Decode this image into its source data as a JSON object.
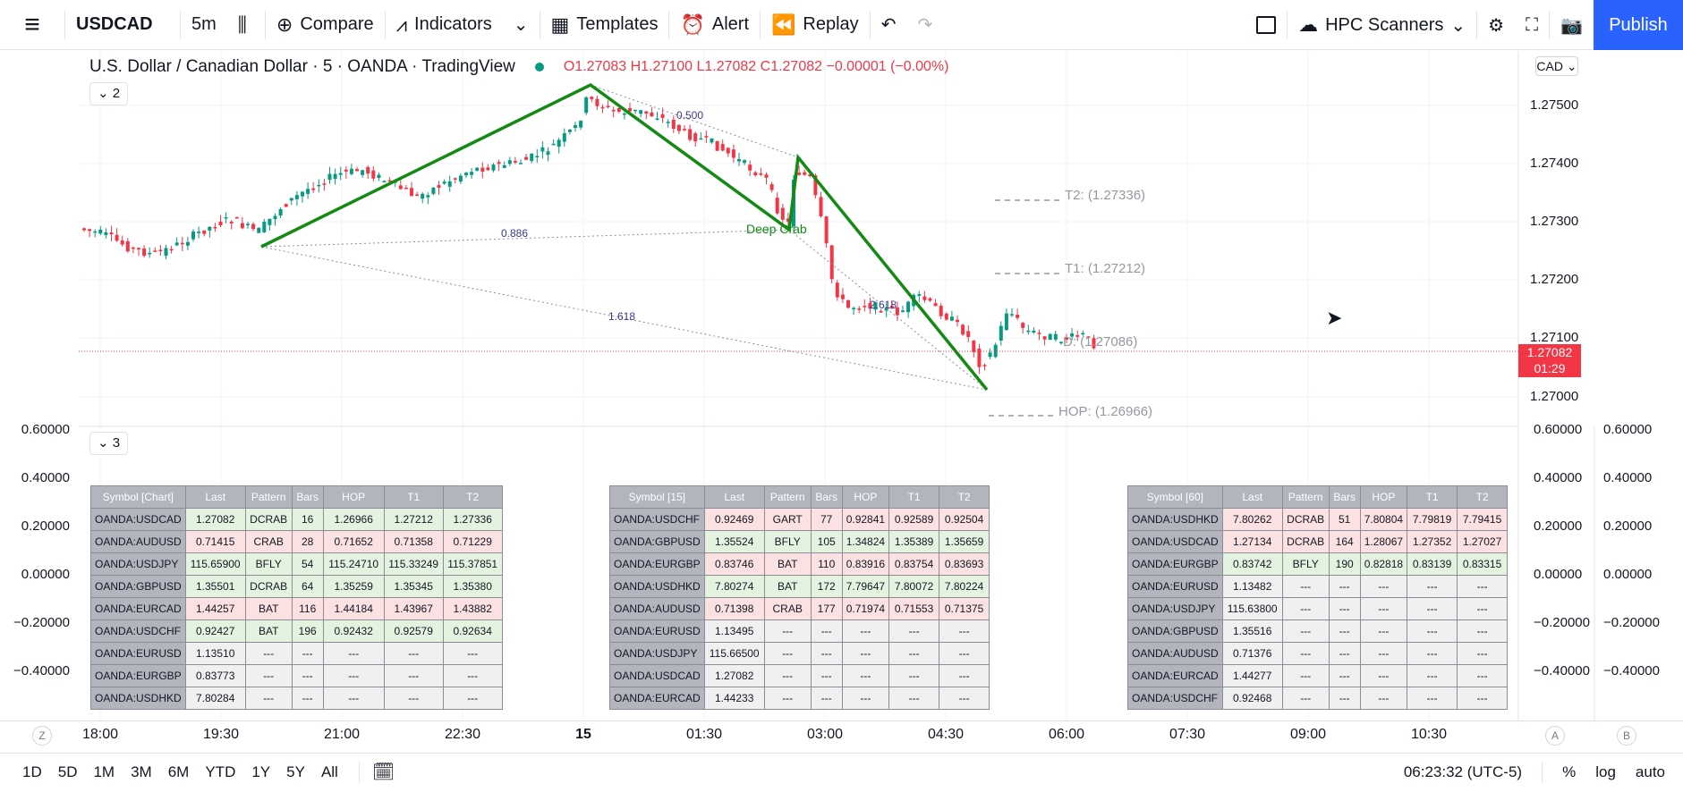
{
  "toolbar": {
    "symbol": "USDCAD",
    "interval": "5m",
    "compare": "Compare",
    "indicators": "Indicators",
    "templates": "Templates",
    "alert": "Alert",
    "replay": "Replay",
    "scanners": "HPC Scanners",
    "publish": "Publish"
  },
  "legend": {
    "title": "U.S. Dollar / Canadian Dollar · 5 · OANDA · TradingView",
    "ohlc": "O1.27083 H1.27100 L1.27082 C1.27082 −0.00001 (−0.00%)",
    "pane2": "2",
    "pane3": "3"
  },
  "price_axis": {
    "currency": "CAD",
    "ticks": [
      "1.27500",
      "1.27400",
      "1.27300",
      "1.27200",
      "1.27100",
      "1.27000"
    ],
    "last_price": "1.27082",
    "countdown": "01:29"
  },
  "indicator_axis": {
    "ticks": [
      "0.60000",
      "0.40000",
      "0.20000",
      "0.00000",
      "−0.20000",
      "−0.40000"
    ]
  },
  "chart_annotations": {
    "ratio_0500": "0.500",
    "ratio_0886": "0.886",
    "ratio_1618": "1.618",
    "ratio_2618": "2.618",
    "pattern_name": "Deep Crab",
    "t2": "T2: (1.27336)",
    "t1": "T1: (1.27212)",
    "d_level": "D: (1.27086)",
    "hop": "HOP: (1.26966)"
  },
  "tables": [
    {
      "headers": [
        "Symbol [Chart]",
        "Last",
        "Pattern",
        "Bars",
        "HOP",
        "T1",
        "T2"
      ],
      "rows": [
        {
          "c": [
            "OANDA:USDCAD",
            "1.27082",
            "DCRAB",
            "16",
            "1.26966",
            "1.27212",
            "1.27336"
          ],
          "s": "green"
        },
        {
          "c": [
            "OANDA:AUDUSD",
            "0.71415",
            "CRAB",
            "28",
            "0.71652",
            "0.71358",
            "0.71229"
          ],
          "s": "red"
        },
        {
          "c": [
            "OANDA:USDJPY",
            "115.65900",
            "BFLY",
            "54",
            "115.24710",
            "115.33249",
            "115.37851"
          ],
          "s": "green"
        },
        {
          "c": [
            "OANDA:GBPUSD",
            "1.35501",
            "DCRAB",
            "64",
            "1.35259",
            "1.35345",
            "1.35380"
          ],
          "s": "green"
        },
        {
          "c": [
            "OANDA:EURCAD",
            "1.44257",
            "BAT",
            "116",
            "1.44184",
            "1.43967",
            "1.43882"
          ],
          "s": "red"
        },
        {
          "c": [
            "OANDA:USDCHF",
            "0.92427",
            "BAT",
            "196",
            "0.92432",
            "0.92579",
            "0.92634"
          ],
          "s": "green"
        },
        {
          "c": [
            "OANDA:EURUSD",
            "1.13510",
            "---",
            "---",
            "---",
            "---",
            "---"
          ],
          "s": "empty"
        },
        {
          "c": [
            "OANDA:EURGBP",
            "0.83773",
            "---",
            "---",
            "---",
            "---",
            "---"
          ],
          "s": "empty"
        },
        {
          "c": [
            "OANDA:USDHKD",
            "7.80284",
            "---",
            "---",
            "---",
            "---",
            "---"
          ],
          "s": "empty"
        }
      ]
    },
    {
      "headers": [
        "Symbol [15]",
        "Last",
        "Pattern",
        "Bars",
        "HOP",
        "T1",
        "T2"
      ],
      "rows": [
        {
          "c": [
            "OANDA:USDCHF",
            "0.92469",
            "GART",
            "77",
            "0.92841",
            "0.92589",
            "0.92504"
          ],
          "s": "red"
        },
        {
          "c": [
            "OANDA:GBPUSD",
            "1.35524",
            "BFLY",
            "105",
            "1.34824",
            "1.35389",
            "1.35659"
          ],
          "s": "green"
        },
        {
          "c": [
            "OANDA:EURGBP",
            "0.83746",
            "BAT",
            "110",
            "0.83916",
            "0.83754",
            "0.83693"
          ],
          "s": "red"
        },
        {
          "c": [
            "OANDA:USDHKD",
            "7.80274",
            "BAT",
            "172",
            "7.79647",
            "7.80072",
            "7.80224"
          ],
          "s": "green"
        },
        {
          "c": [
            "OANDA:AUDUSD",
            "0.71398",
            "CRAB",
            "177",
            "0.71974",
            "0.71553",
            "0.71375"
          ],
          "s": "red"
        },
        {
          "c": [
            "OANDA:EURUSD",
            "1.13495",
            "---",
            "---",
            "---",
            "---",
            "---"
          ],
          "s": "empty"
        },
        {
          "c": [
            "OANDA:USDJPY",
            "115.66500",
            "---",
            "---",
            "---",
            "---",
            "---"
          ],
          "s": "empty"
        },
        {
          "c": [
            "OANDA:USDCAD",
            "1.27082",
            "---",
            "---",
            "---",
            "---",
            "---"
          ],
          "s": "empty"
        },
        {
          "c": [
            "OANDA:EURCAD",
            "1.44233",
            "---",
            "---",
            "---",
            "---",
            "---"
          ],
          "s": "empty"
        }
      ]
    },
    {
      "headers": [
        "Symbol [60]",
        "Last",
        "Pattern",
        "Bars",
        "HOP",
        "T1",
        "T2"
      ],
      "rows": [
        {
          "c": [
            "OANDA:USDHKD",
            "7.80262",
            "DCRAB",
            "51",
            "7.80804",
            "7.79819",
            "7.79415"
          ],
          "s": "red"
        },
        {
          "c": [
            "OANDA:USDCAD",
            "1.27134",
            "DCRAB",
            "164",
            "1.28067",
            "1.27352",
            "1.27027"
          ],
          "s": "red"
        },
        {
          "c": [
            "OANDA:EURGBP",
            "0.83742",
            "BFLY",
            "190",
            "0.82818",
            "0.83139",
            "0.83315"
          ],
          "s": "green"
        },
        {
          "c": [
            "OANDA:EURUSD",
            "1.13482",
            "---",
            "---",
            "---",
            "---",
            "---"
          ],
          "s": "empty"
        },
        {
          "c": [
            "OANDA:USDJPY",
            "115.63800",
            "---",
            "---",
            "---",
            "---",
            "---"
          ],
          "s": "empty"
        },
        {
          "c": [
            "OANDA:GBPUSD",
            "1.35516",
            "---",
            "---",
            "---",
            "---",
            "---"
          ],
          "s": "empty"
        },
        {
          "c": [
            "OANDA:AUDUSD",
            "0.71376",
            "---",
            "---",
            "---",
            "---",
            "---"
          ],
          "s": "empty"
        },
        {
          "c": [
            "OANDA:EURCAD",
            "1.44277",
            "---",
            "---",
            "---",
            "---",
            "---"
          ],
          "s": "empty"
        },
        {
          "c": [
            "OANDA:USDCHF",
            "0.92468",
            "---",
            "---",
            "---",
            "---",
            "---"
          ],
          "s": "empty"
        }
      ]
    }
  ],
  "time_axis": {
    "labels": [
      "18:00",
      "19:30",
      "21:00",
      "22:30",
      "15",
      "01:30",
      "03:00",
      "04:30",
      "06:00",
      "07:30",
      "09:00",
      "10:30"
    ],
    "left_btn": "Z",
    "right_btn_a": "A",
    "right_btn_b": "B"
  },
  "bottom_bar": {
    "ranges": [
      "1D",
      "5D",
      "1M",
      "3M",
      "6M",
      "YTD",
      "1Y",
      "5Y",
      "All"
    ],
    "clock": "06:23:32 (UTC-5)",
    "percent": "%",
    "log": "log",
    "auto": "auto"
  },
  "colors": {
    "up": "#089981",
    "down": "#f23645",
    "pattern": "#138a13",
    "accent": "#2962ff"
  }
}
